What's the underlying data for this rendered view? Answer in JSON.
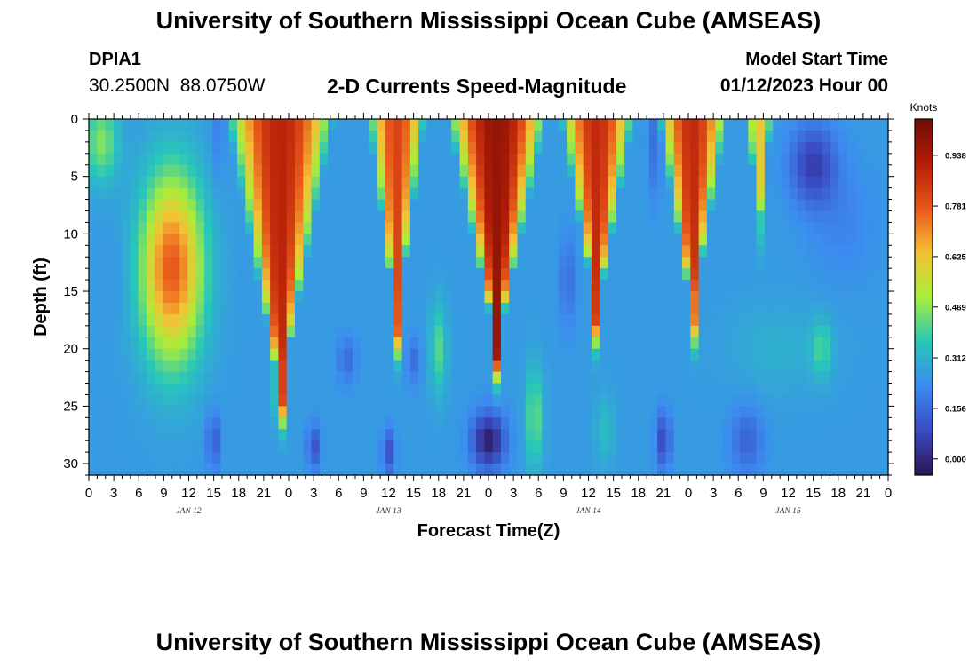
{
  "header": {
    "title": "University of Southern Mississippi Ocean Cube (AMSEAS)",
    "station": "DPIA1",
    "coords": "30.2500N  88.0750W",
    "subtitle": "2-D Currents Speed-Magnitude",
    "model_label": "Model Start Time",
    "model_time": "01/12/2023 Hour 00"
  },
  "footer": {
    "title": "University of Southern Mississippi Ocean Cube (AMSEAS)"
  },
  "colors": {
    "palette": [
      "#2b1452",
      "#3a4bc4",
      "#3c8cf0",
      "#27c7b9",
      "#a8ee3a",
      "#f5c034",
      "#e8571b",
      "#b51d07",
      "#700e08"
    ]
  },
  "chart_data": {
    "type": "heatmap",
    "title": "2-D Currents Speed-Magnitude",
    "xlabel": "Forecast Time(Z)",
    "ylabel": "Depth (ft)",
    "units": "Knots",
    "x_hours_range": [
      0,
      96
    ],
    "ylim": [
      0,
      31
    ],
    "y_inverted": true,
    "x_tick_labels": [
      "0",
      "3",
      "6",
      "9",
      "12",
      "15",
      "18",
      "21",
      "0",
      "3",
      "6",
      "9",
      "12",
      "15",
      "18",
      "21",
      "0",
      "3",
      "6",
      "9",
      "12",
      "15",
      "18",
      "21",
      "0",
      "3",
      "6",
      "9",
      "12",
      "15",
      "18",
      "21",
      "0"
    ],
    "x_day_labels": [
      {
        "label": "JAN 12",
        "hour": 12
      },
      {
        "label": "JAN 13",
        "hour": 36
      },
      {
        "label": "JAN 14",
        "hour": 60
      },
      {
        "label": "JAN 15",
        "hour": 84
      }
    ],
    "y_ticks": [
      0,
      5,
      10,
      15,
      20,
      25,
      30
    ],
    "colorbar": {
      "label": "Knots",
      "min": -0.05,
      "max": 1.05,
      "tick_labels": [
        "0.938",
        "0.781",
        "0.625",
        "0.469",
        "0.312",
        "0.156",
        "0.000"
      ],
      "tick_values": [
        0.938,
        0.781,
        0.625,
        0.469,
        0.312,
        0.156,
        0.0
      ]
    },
    "features": [
      {
        "kind": "background",
        "value": 0.26
      },
      {
        "kind": "blob",
        "center_hour": 10,
        "center_depth": 13,
        "sx": 3.6,
        "sy": 8.0,
        "amp": 0.52
      },
      {
        "kind": "blob",
        "center_hour": 1.5,
        "center_depth": 2,
        "sx": 2.0,
        "sy": 3.5,
        "amp": 0.2
      },
      {
        "kind": "blob",
        "center_hour": 2,
        "center_depth": 14,
        "sx": 1.5,
        "sy": 2.5,
        "amp": -0.14
      },
      {
        "kind": "cone",
        "center_hour": 23,
        "half_width": 6.5,
        "bottom_depth": 24,
        "max": 0.9
      },
      {
        "kind": "cone",
        "center_hour": 37,
        "half_width": 3.5,
        "bottom_depth": 18,
        "max": 0.82
      },
      {
        "kind": "cone",
        "center_hour": 49,
        "half_width": 6.0,
        "bottom_depth": 20,
        "max": 0.98
      },
      {
        "kind": "cone",
        "center_hour": 61,
        "half_width": 4.5,
        "bottom_depth": 17,
        "max": 0.88
      },
      {
        "kind": "cone",
        "center_hour": 72.5,
        "half_width": 4.2,
        "bottom_depth": 17,
        "max": 0.88
      },
      {
        "kind": "cone",
        "center_hour": 80.5,
        "half_width": 1.6,
        "bottom_depth": 9,
        "max": 0.62
      },
      {
        "kind": "blob",
        "center_hour": 15.5,
        "center_depth": 1,
        "sx": 0.9,
        "sy": 5.0,
        "amp": -0.06
      },
      {
        "kind": "blob",
        "center_hour": 68,
        "center_depth": 2,
        "sx": 0.8,
        "sy": 5.0,
        "amp": -0.1
      },
      {
        "kind": "blob",
        "center_hour": 87,
        "center_depth": 4,
        "sx": 2.8,
        "sy": 3.5,
        "amp": -0.2
      },
      {
        "kind": "blob",
        "center_hour": 90.5,
        "center_depth": 9,
        "sx": 4.0,
        "sy": 5.0,
        "amp": -0.05
      },
      {
        "kind": "blob",
        "center_hour": 83,
        "center_depth": 20,
        "sx": 6.0,
        "sy": 4.0,
        "amp": 0.05
      },
      {
        "kind": "blob",
        "center_hour": 88,
        "center_depth": 20,
        "sx": 1.2,
        "sy": 2.5,
        "amp": 0.12
      },
      {
        "kind": "blob",
        "center_hour": 42,
        "center_depth": 20,
        "sx": 1.0,
        "sy": 4.0,
        "amp": 0.15
      },
      {
        "kind": "blob",
        "center_hour": 53.5,
        "center_depth": 26,
        "sx": 1.0,
        "sy": 4.5,
        "amp": 0.18
      },
      {
        "kind": "blob",
        "center_hour": 62,
        "center_depth": 27,
        "sx": 1.2,
        "sy": 3.0,
        "amp": 0.08
      },
      {
        "kind": "blob",
        "center_hour": 48,
        "center_depth": 28,
        "sx": 2.0,
        "sy": 2.5,
        "amp": -0.28
      },
      {
        "kind": "blob",
        "center_hour": 15,
        "center_depth": 28,
        "sx": 0.8,
        "sy": 2.5,
        "amp": -0.14
      },
      {
        "kind": "blob",
        "center_hour": 27,
        "center_depth": 28.5,
        "sx": 0.8,
        "sy": 2.0,
        "amp": -0.16
      },
      {
        "kind": "blob",
        "center_hour": 36,
        "center_depth": 29,
        "sx": 0.8,
        "sy": 2.0,
        "amp": -0.16
      },
      {
        "kind": "blob",
        "center_hour": 69,
        "center_depth": 28,
        "sx": 0.9,
        "sy": 2.5,
        "amp": -0.18
      },
      {
        "kind": "blob",
        "center_hour": 79,
        "center_depth": 28,
        "sx": 2.0,
        "sy": 3.0,
        "amp": -0.12
      },
      {
        "kind": "blob",
        "center_hour": 31,
        "center_depth": 21,
        "sx": 1.2,
        "sy": 2.0,
        "amp": -0.1
      },
      {
        "kind": "blob",
        "center_hour": 39,
        "center_depth": 21,
        "sx": 0.9,
        "sy": 2.0,
        "amp": -0.1
      },
      {
        "kind": "blob",
        "center_hour": 57.5,
        "center_depth": 14,
        "sx": 1.0,
        "sy": 4.0,
        "amp": -0.1
      }
    ]
  }
}
